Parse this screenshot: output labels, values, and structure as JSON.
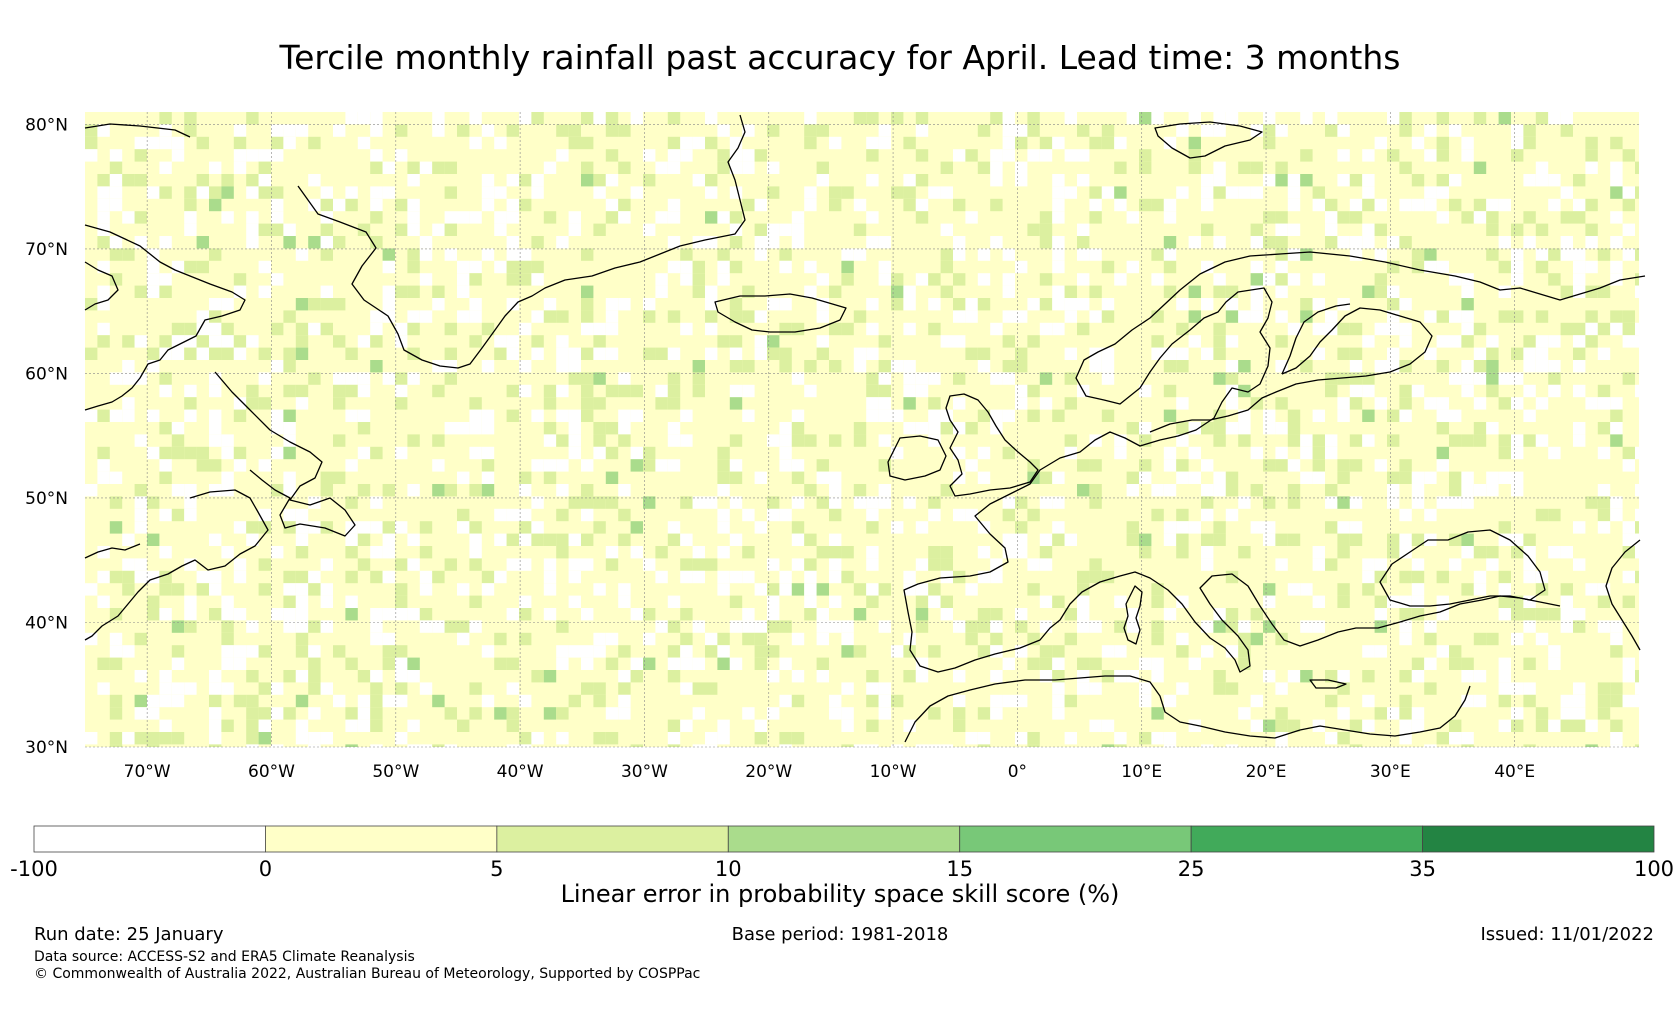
{
  "title": "Tercile monthly rainfall past accuracy for April. Lead time: 3 months",
  "map": {
    "lon_range": [
      -75,
      50
    ],
    "lat_range": [
      30,
      81
    ],
    "lat_ticks": [
      {
        "value": 30,
        "label": "30°N"
      },
      {
        "value": 40,
        "label": "40°N"
      },
      {
        "value": 50,
        "label": "50°N"
      },
      {
        "value": 60,
        "label": "60°N"
      },
      {
        "value": 70,
        "label": "70°N"
      },
      {
        "value": 80,
        "label": "80°N"
      }
    ],
    "lon_ticks": [
      {
        "value": -70,
        "label": "70°W"
      },
      {
        "value": -60,
        "label": "60°W"
      },
      {
        "value": -50,
        "label": "50°W"
      },
      {
        "value": -40,
        "label": "40°W"
      },
      {
        "value": -30,
        "label": "30°W"
      },
      {
        "value": -20,
        "label": "20°W"
      },
      {
        "value": -10,
        "label": "10°W"
      },
      {
        "value": 0,
        "label": "0°"
      },
      {
        "value": 10,
        "label": "10°E"
      },
      {
        "value": 20,
        "label": "20°E"
      },
      {
        "value": 30,
        "label": "30°E"
      },
      {
        "value": 40,
        "label": "40°E"
      }
    ],
    "grid_lines": true,
    "coastline_color": "#000000"
  },
  "colorbar": {
    "label": "Linear error in probability space skill score (%)",
    "bins": [
      {
        "from": -100,
        "to": 0,
        "color": "#ffffff"
      },
      {
        "from": 0,
        "to": 5,
        "color": "#ffffc8"
      },
      {
        "from": 5,
        "to": 10,
        "color": "#dcf0a0"
      },
      {
        "from": 10,
        "to": 15,
        "color": "#aadc8c"
      },
      {
        "from": 15,
        "to": 25,
        "color": "#78c878"
      },
      {
        "from": 25,
        "to": 35,
        "color": "#41aa5a"
      },
      {
        "from": 35,
        "to": 100,
        "color": "#238443"
      }
    ],
    "tick_labels": [
      "-100",
      "0",
      "5",
      "10",
      "15",
      "25",
      "35",
      "100"
    ]
  },
  "footer": {
    "run_date": "Run date: 25 January",
    "base_period": "Base period: 1981-2018",
    "issued": "Issued: 11/01/2022",
    "data_source": "Data source: ACCESS-S2 and ERA5 Climate Reanalysis",
    "copyright": "© Commonwealth of Australia 2022, Australian Bureau of Meteorology, Supported by COSPPac"
  }
}
